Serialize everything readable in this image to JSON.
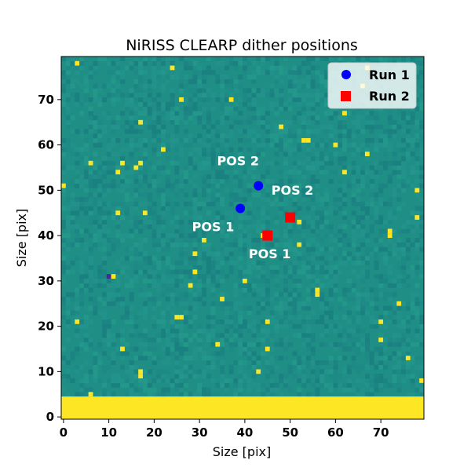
{
  "chart_data": {
    "type": "scatter",
    "title": "NiRISS CLEARP dither positions",
    "xlabel": "Size [pix]",
    "ylabel": "Size [pix]",
    "xlim": [
      -0.5,
      79.5
    ],
    "ylim": [
      -0.5,
      79.5
    ],
    "xticks": [
      "0",
      "10",
      "20",
      "30",
      "40",
      "50",
      "60",
      "70"
    ],
    "yticks": [
      "0",
      "10",
      "20",
      "30",
      "40",
      "50",
      "60",
      "70"
    ],
    "grid": false,
    "legend_position": "top-right",
    "background": {
      "type": "heatmap",
      "colormap": "viridis",
      "base_color": "#1f8f86",
      "saturated_color": "#fde725",
      "saturated_rows": [
        0,
        4
      ],
      "hot_pixels": [
        [
          3,
          78
        ],
        [
          24,
          77
        ],
        [
          26,
          70
        ],
        [
          37,
          70
        ],
        [
          66,
          73
        ],
        [
          67,
          77
        ],
        [
          62,
          67
        ],
        [
          17,
          65
        ],
        [
          48,
          64
        ],
        [
          53,
          61
        ],
        [
          54,
          61
        ],
        [
          60,
          60
        ],
        [
          22,
          59
        ],
        [
          67,
          58
        ],
        [
          6,
          56
        ],
        [
          13,
          56
        ],
        [
          16,
          55
        ],
        [
          17,
          56
        ],
        [
          12,
          54
        ],
        [
          62,
          54
        ],
        [
          0,
          51
        ],
        [
          78,
          50
        ],
        [
          12,
          45
        ],
        [
          18,
          45
        ],
        [
          78,
          44
        ],
        [
          52,
          43
        ],
        [
          72,
          41
        ],
        [
          72,
          40
        ],
        [
          44,
          40
        ],
        [
          31,
          39
        ],
        [
          52,
          38
        ],
        [
          29,
          36
        ],
        [
          29,
          32
        ],
        [
          11,
          31
        ],
        [
          40,
          30
        ],
        [
          28,
          29
        ],
        [
          56,
          28
        ],
        [
          56,
          27
        ],
        [
          35,
          26
        ],
        [
          74,
          25
        ],
        [
          25,
          22
        ],
        [
          26,
          22
        ],
        [
          45,
          21
        ],
        [
          3,
          21
        ],
        [
          70,
          21
        ],
        [
          34,
          16
        ],
        [
          13,
          15
        ],
        [
          45,
          15
        ],
        [
          70,
          17
        ],
        [
          76,
          13
        ],
        [
          43,
          10
        ],
        [
          17,
          10
        ],
        [
          17,
          9
        ],
        [
          79,
          8
        ],
        [
          6,
          5
        ]
      ],
      "cold_pixels": [
        [
          10,
          31
        ]
      ]
    },
    "series": [
      {
        "name": "Run 1",
        "marker": "circle",
        "color": "#0000ff",
        "points": [
          {
            "x": 39,
            "y": 46,
            "label": "POS 1"
          },
          {
            "x": 43,
            "y": 51,
            "label": "POS 2"
          }
        ]
      },
      {
        "name": "Run 2",
        "marker": "square",
        "color": "#ff0000",
        "points": [
          {
            "x": 45,
            "y": 40,
            "label": "POS 1"
          },
          {
            "x": 50,
            "y": 44,
            "label": "POS 2"
          }
        ]
      }
    ],
    "annotations": [
      {
        "text": "POS 2",
        "x": 38.5,
        "y": 55.5
      },
      {
        "text": "POS 2",
        "x": 50.5,
        "y": 49
      },
      {
        "text": "POS 1",
        "x": 33,
        "y": 41
      },
      {
        "text": "POS 1",
        "x": 45.5,
        "y": 35
      }
    ]
  }
}
